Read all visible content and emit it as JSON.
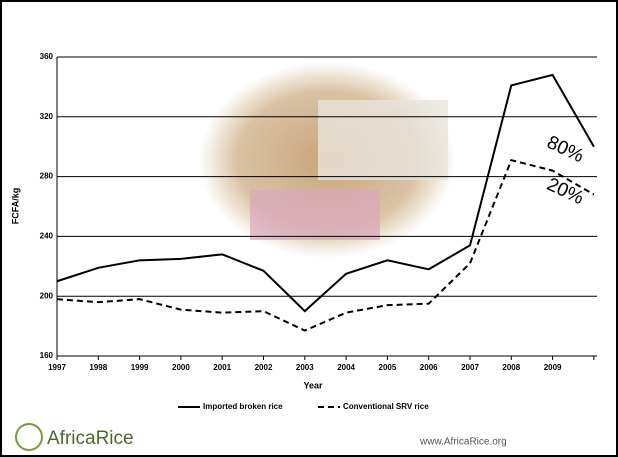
{
  "chart_data": {
    "type": "line",
    "ylabel": "FCFA/kg",
    "xlabel": "Year",
    "categories": [
      "1997",
      "1998",
      "1999",
      "2000",
      "2001",
      "2002",
      "2003",
      "2004",
      "2005",
      "2006",
      "2007",
      "2008",
      "2009",
      null
    ],
    "series": [
      {
        "name": "Imported broken rice",
        "color": "#000000",
        "dash": false,
        "values": [
          210,
          219,
          224,
          225,
          228,
          217,
          190,
          215,
          224,
          218,
          234,
          341,
          348,
          300
        ]
      },
      {
        "name": "Conventional SRV rice",
        "color": "#000000",
        "dash": true,
        "values": [
          198,
          196,
          198,
          191,
          189,
          190,
          177,
          189,
          194,
          195,
          222,
          291,
          284,
          268
        ]
      }
    ],
    "ylim": [
      160,
      360
    ],
    "yticks": [
      160,
      200,
      240,
      280,
      320,
      360
    ],
    "grid": true,
    "annotations": [
      "80%",
      "20%"
    ]
  },
  "footer": {
    "logo": "AfricaRice",
    "url": "www.AfricaRice.org"
  }
}
